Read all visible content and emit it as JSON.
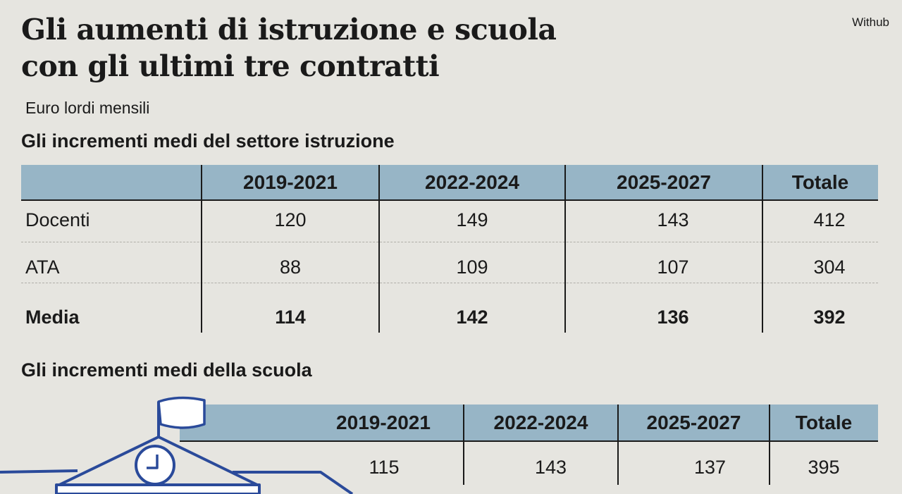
{
  "title_line1": "Gli aumenti di istruzione e scuola",
  "title_line2": "con gli ultimi tre contratti",
  "credit": "Withub",
  "subtitle": "Euro lordi mensili",
  "colors": {
    "header": "#97b5c6",
    "background": "#e6e5e0",
    "illustration": "#2a4a9a"
  },
  "chart_data": [
    {
      "type": "table",
      "title": "Gli incrementi medi del settore istruzione",
      "columns": [
        "",
        "2019-2021",
        "2022-2024",
        "2025-2027",
        "Totale"
      ],
      "rows": [
        {
          "label": "Docenti",
          "values": [
            "120",
            "149",
            "143",
            "412"
          ]
        },
        {
          "label": "ATA",
          "values": [
            "88",
            "109",
            "107",
            "304"
          ]
        },
        {
          "label": "Media",
          "values": [
            "114",
            "142",
            "136",
            "392"
          ]
        }
      ]
    },
    {
      "type": "table",
      "title": "Gli incrementi medi della scuola",
      "columns": [
        "2019-2021",
        "2022-2024",
        "2025-2027",
        "Totale"
      ],
      "rows": [
        {
          "values": [
            "115",
            "143",
            "137",
            "395"
          ]
        }
      ]
    }
  ]
}
